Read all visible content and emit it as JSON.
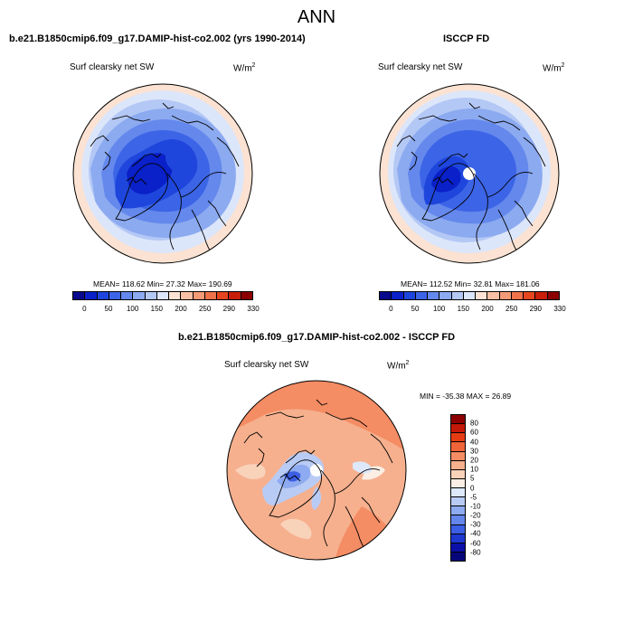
{
  "title": "ANN",
  "panels": [
    {
      "title": "b.e21.B1850cmip6.f09_g17.DAMIP-hist-co2.002 (yrs 1990-2014)",
      "variable": "Surf clearsky net SW",
      "units_base": "W/m",
      "units_exp": "2",
      "stats": "MEAN= 118.62  Min=  27.32  Max= 190.69"
    },
    {
      "title": "ISCCP FD",
      "variable": "Surf clearsky net SW",
      "units_base": "W/m",
      "units_exp": "2",
      "stats": "MEAN= 112.52  Min=  32.81  Max= 181.06"
    },
    {
      "title": "b.e21.B1850cmip6.f09_g17.DAMIP-hist-co2.002 - ISCCP FD",
      "variable": "Surf clearsky net SW",
      "units_base": "W/m",
      "units_exp": "2",
      "stats": "MIN = -35.38 MAX =  26.89"
    }
  ],
  "colorbar_abs": {
    "colors": [
      "#08088c",
      "#0a20c8",
      "#1e46dc",
      "#3c64e6",
      "#6488ec",
      "#8caaf0",
      "#b4c8f5",
      "#dce6fa",
      "#fbe2d2",
      "#f8c0a4",
      "#f39a76",
      "#ee724a",
      "#e6461e",
      "#c81e0a",
      "#8c0000"
    ],
    "ticks": [
      "0",
      "50",
      "100",
      "150",
      "200",
      "250",
      "290",
      "330"
    ]
  },
  "colorbar_diff": {
    "colors": [
      "#8c0000",
      "#c41808",
      "#e63c14",
      "#f0643a",
      "#f48c64",
      "#f6b08e",
      "#f9d2ba",
      "#fbeee4",
      "#dde8fa",
      "#b8cbf5",
      "#8eaaf0",
      "#6486ea",
      "#3c5ee4",
      "#1e38d0",
      "#0c10a8",
      "#06067a"
    ],
    "ticks": [
      "80",
      "60",
      "40",
      "30",
      "20",
      "10",
      "5",
      "0",
      "-5",
      "-10",
      "-20",
      "-30",
      "-40",
      "-60",
      "-80"
    ]
  }
}
